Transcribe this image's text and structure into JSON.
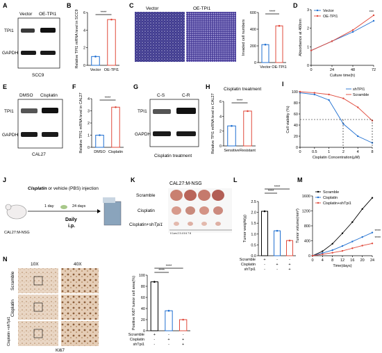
{
  "figure": {
    "panels": {
      "A": {
        "letter": "A",
        "lanes": [
          "Vector",
          "OE-TPI1"
        ],
        "rows": [
          "TPI1",
          "GAPDH"
        ],
        "caption": "SCC9"
      },
      "B": {
        "letter": "B",
        "ylabel": "Relative TPI1 mRNA level in SCC9",
        "yticks": [
          "0",
          "2",
          "4",
          "6"
        ],
        "categories": [
          "Vector",
          "OE-TPI1"
        ],
        "sig": "****"
      },
      "C": {
        "letter": "C",
        "images": [
          "Vector",
          "OE-TPI1"
        ],
        "ylabel": "Invaded cell numbers",
        "yticks": [
          "0",
          "200",
          "400",
          "600"
        ],
        "categories": [
          "Vector",
          "OE-TPI1"
        ],
        "sig": "****"
      },
      "D": {
        "letter": "D",
        "ylabel": "Absorbance at 460nm",
        "xlabel": "Culture time(h)",
        "yticks": [
          "0",
          "1",
          "2",
          "3"
        ],
        "xticks": [
          "0",
          "24",
          "48",
          "72"
        ],
        "legend": [
          "Vector",
          "OE-TPI1"
        ],
        "sig": "***"
      },
      "E": {
        "letter": "E",
        "lanes": [
          "DMSO",
          "Cisplatin"
        ],
        "rows": [
          "TPI1",
          "GAPDH"
        ],
        "caption": "CAL27"
      },
      "F": {
        "letter": "F",
        "ylabel": "Relative TPI1 mRNA level in CAL27",
        "yticks": [
          "0",
          "1",
          "2",
          "3",
          "4"
        ],
        "categories": [
          "DMSO",
          "Cisplatin"
        ],
        "sig": "****"
      },
      "G": {
        "letter": "G",
        "lanes": [
          "C-S",
          "C-R"
        ],
        "rows": [
          "TPI1",
          "GAPDH"
        ],
        "caption": "Cisplatin treatment"
      },
      "H": {
        "letter": "H",
        "title": "Cisplatin treatment",
        "ylabel": "Relative TPI1 mRNA level in CAL27",
        "yticks": [
          "0",
          "2",
          "4",
          "6"
        ],
        "categories": [
          "Sensitive",
          "Resistant"
        ],
        "sig": "****"
      },
      "I": {
        "letter": "I",
        "ylabel": "Cell viability (%)",
        "xlabel": "Cisplatin Concentration(μM)",
        "yticks": [
          "0",
          "20",
          "40",
          "60",
          "80",
          "100"
        ],
        "xticks": [
          "0",
          "0.5",
          "1",
          "2",
          "4",
          "8"
        ],
        "legend": [
          "shTPI1",
          "Scramble"
        ]
      },
      "J": {
        "letter": "J",
        "drug": "Cisplatin",
        "drug_rest": " or vehicle (PBS) injection",
        "day1": "1 day",
        "day24": "24 days",
        "daily": "Daily",
        "route": "i.p.",
        "model": "CAL27:M-NSG"
      },
      "K": {
        "letter": "K",
        "title": "CAL27:M-NSG",
        "rows": [
          "Scramble",
          "Cisplatin",
          "Cisplatin+shTpi1"
        ],
        "ruler": "0 1cm 2 3 4 5 6 7 8"
      },
      "L": {
        "letter": "L",
        "ylabel": "Tumor weight(g)",
        "yticks": [
          "0.0",
          "0.5",
          "1.0",
          "1.5",
          "2.0",
          "2.5"
        ],
        "sig": [
          "****",
          "****"
        ],
        "rowlabels": [
          "Scramble",
          "Cisplatin",
          "shTpi1"
        ],
        "marks": [
          [
            "+",
            "-",
            "-"
          ],
          [
            "-",
            "+",
            "+"
          ],
          [
            "-",
            "-",
            "+"
          ]
        ]
      },
      "M": {
        "letter": "M",
        "ylabel": "Tumor volume(mm³)",
        "xlabel": "Time(days)",
        "yticks": [
          "0",
          "400",
          "800",
          "1200",
          "1600"
        ],
        "xticks": [
          "0",
          "4",
          "8",
          "12",
          "16",
          "20",
          "24"
        ],
        "legend": [
          "Scramble",
          "Cisplatin",
          "Cisplatin+shTpi1"
        ],
        "sig": [
          "****",
          "****"
        ]
      },
      "N": {
        "letter": "N",
        "cols": [
          "10X",
          "40X"
        ],
        "rows": [
          "Scramble",
          "Cisplatin",
          "Cisplatin +shTpi1"
        ],
        "caption": "Ki67",
        "ylabel": "Positive Ki67 tumor cell area(%)",
        "yticks": [
          "0",
          "20",
          "40",
          "60",
          "80",
          "100"
        ],
        "sig": [
          "****",
          "****"
        ],
        "rowlabels": [
          "Scramble",
          "Cisplatin",
          "shTpi1"
        ],
        "marks": [
          [
            "+",
            "-",
            "-"
          ],
          [
            "-",
            "+",
            "+"
          ],
          [
            "-",
            "-",
            "+"
          ]
        ]
      }
    }
  },
  "chart_data": [
    {
      "panel": "B",
      "type": "bar",
      "categories": [
        "Vector",
        "OE-TPI1"
      ],
      "values": [
        1.0,
        5.2
      ],
      "ylim": [
        0,
        6
      ]
    },
    {
      "panel": "C",
      "type": "bar",
      "categories": [
        "Vector",
        "OE-TPI1"
      ],
      "values": [
        215,
        440
      ],
      "ylim": [
        0,
        600
      ]
    },
    {
      "panel": "D",
      "type": "line",
      "x": [
        0,
        24,
        48,
        72
      ],
      "series": [
        {
          "name": "Vector",
          "values": [
            0.8,
            1.3,
            1.8,
            2.4
          ]
        },
        {
          "name": "OE-TPI1",
          "values": [
            0.8,
            1.3,
            1.9,
            2.7
          ]
        }
      ],
      "ylim": [
        0,
        3
      ]
    },
    {
      "panel": "F",
      "type": "bar",
      "categories": [
        "DMSO",
        "Cisplatin"
      ],
      "values": [
        1.0,
        3.3
      ],
      "ylim": [
        0,
        4
      ]
    },
    {
      "panel": "H",
      "type": "bar",
      "categories": [
        "Sensitive",
        "Resistant"
      ],
      "values": [
        2.7,
        4.7
      ],
      "ylim": [
        0,
        6
      ]
    },
    {
      "panel": "I",
      "type": "line",
      "x": [
        "0",
        "0.5",
        "1",
        "2",
        "4",
        "8"
      ],
      "series": [
        {
          "name": "shTPI1",
          "values": [
            98,
            95,
            85,
            42,
            20,
            8
          ]
        },
        {
          "name": "Scramble",
          "values": [
            100,
            98,
            95,
            88,
            72,
            48
          ]
        }
      ],
      "ylim": [
        0,
        100
      ]
    },
    {
      "panel": "L",
      "type": "bar",
      "categories": [
        "Scramble",
        "Cisplatin",
        "Cisplatin+shTpi1"
      ],
      "values": [
        2.05,
        1.15,
        0.7
      ],
      "ylim": [
        0,
        2.5
      ]
    },
    {
      "panel": "M",
      "type": "line",
      "x": [
        0,
        4,
        8,
        12,
        16,
        20,
        24
      ],
      "series": [
        {
          "name": "Scramble",
          "values": [
            0,
            120,
            320,
            600,
            900,
            1250,
            1550
          ]
        },
        {
          "name": "Cisplatin",
          "values": [
            0,
            70,
            150,
            260,
            380,
            500,
            620
          ]
        },
        {
          "name": "Cisplatin+shTpi1",
          "values": [
            0,
            40,
            80,
            130,
            200,
            270,
            330
          ]
        }
      ],
      "ylim": [
        0,
        1600
      ]
    },
    {
      "panel": "N",
      "type": "bar",
      "categories": [
        "Scramble",
        "Cisplatin",
        "Cisplatin+shTpi1"
      ],
      "values": [
        88,
        36,
        20
      ],
      "ylim": [
        0,
        100
      ]
    }
  ],
  "colors": {
    "blue": "#1f6fd1",
    "red": "#e0483a",
    "black": "#000000"
  }
}
